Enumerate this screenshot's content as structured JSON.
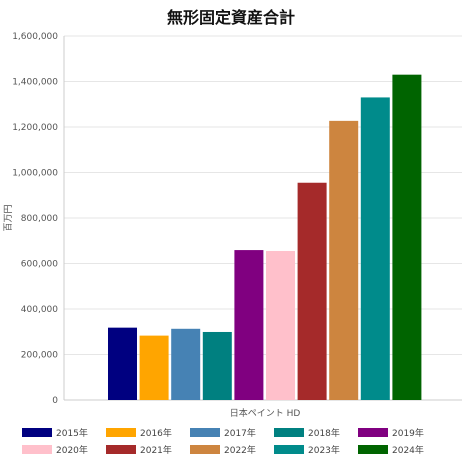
{
  "chart_data": {
    "type": "bar",
    "title": "無形固定資産合計",
    "xlabel": "日本ペイント HD",
    "ylabel": "百万円",
    "ylim": [
      0,
      1600000
    ],
    "yticks": [
      0,
      200000,
      400000,
      600000,
      800000,
      1000000,
      1200000,
      1400000,
      1600000
    ],
    "ytick_labels": [
      "0",
      "200,000",
      "400,000",
      "600,000",
      "800,000",
      "1,000,000",
      "1,200,000",
      "1,400,000",
      "1,600,000"
    ],
    "grid": true,
    "legend_position": "bottom",
    "series": [
      {
        "name": "2015年",
        "value": 318000,
        "color": "#000080"
      },
      {
        "name": "2016年",
        "value": 283000,
        "color": "#FFA500"
      },
      {
        "name": "2017年",
        "value": 313000,
        "color": "#4682B4"
      },
      {
        "name": "2018年",
        "value": 299000,
        "color": "#008080"
      },
      {
        "name": "2019年",
        "value": 659000,
        "color": "#800080"
      },
      {
        "name": "2020年",
        "value": 655000,
        "color": "#FFC0CB"
      },
      {
        "name": "2021年",
        "value": 955000,
        "color": "#A52A2A"
      },
      {
        "name": "2022年",
        "value": 1227000,
        "color": "#CD853F"
      },
      {
        "name": "2023年",
        "value": 1330000,
        "color": "#008B8B"
      },
      {
        "name": "2024年",
        "value": 1430000,
        "color": "#006400"
      }
    ]
  }
}
